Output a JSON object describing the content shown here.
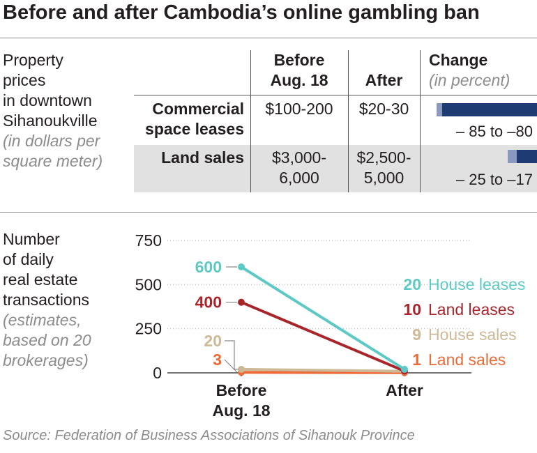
{
  "title": "Before and after Cambodia’s online gambling ban",
  "table": {
    "side_label": [
      "Property",
      "prices",
      "in downtown",
      "Sihanoukville"
    ],
    "side_note": [
      "(in dollars per",
      "square meter)"
    ],
    "col_before": [
      "Before",
      "Aug. 18"
    ],
    "col_after": "After",
    "col_change": "Change",
    "col_change_note": "(in percent)",
    "rows": [
      {
        "label": [
          "Commercial",
          "space leases"
        ],
        "before": [
          "$100-200"
        ],
        "after": [
          "$20-30"
        ],
        "change_text": "– 85 to –80",
        "change_min": -85,
        "change_max": -80
      },
      {
        "label": [
          "Land sales"
        ],
        "before": [
          "$3,000-",
          "6,000"
        ],
        "after": [
          "$2,500-",
          "5,000"
        ],
        "change_text": "– 25 to –17",
        "change_min": -25,
        "change_max": -17
      }
    ],
    "colors": {
      "bar_dark": "#1f3b73",
      "bar_light": "#8b98c0",
      "shade": "#e1e1e1"
    }
  },
  "transactions": {
    "side_label": [
      "Number",
      "of daily",
      "real estate",
      "transactions"
    ],
    "side_note": [
      "(estimates,",
      "based on 20",
      "brokerages)"
    ]
  },
  "chart_data": {
    "type": "line",
    "x": [
      "Before Aug. 18",
      "After"
    ],
    "x_tick_labels": [
      [
        "Before",
        "Aug. 18"
      ],
      [
        "After"
      ]
    ],
    "ylim": [
      0,
      750
    ],
    "yticks": [
      0,
      250,
      500,
      750
    ],
    "grid": true,
    "series": [
      {
        "name": "House leases",
        "values": [
          600,
          20
        ],
        "color": "#5ec9c4"
      },
      {
        "name": "Land leases",
        "values": [
          400,
          10
        ],
        "color": "#a8262b"
      },
      {
        "name": "House sales",
        "values": [
          20,
          9
        ],
        "color": "#cdb997"
      },
      {
        "name": "Land sales",
        "values": [
          3,
          1
        ],
        "color": "#ec6a37"
      }
    ]
  },
  "source": "Source: Federation of Business Associations of Sihanouk Province"
}
